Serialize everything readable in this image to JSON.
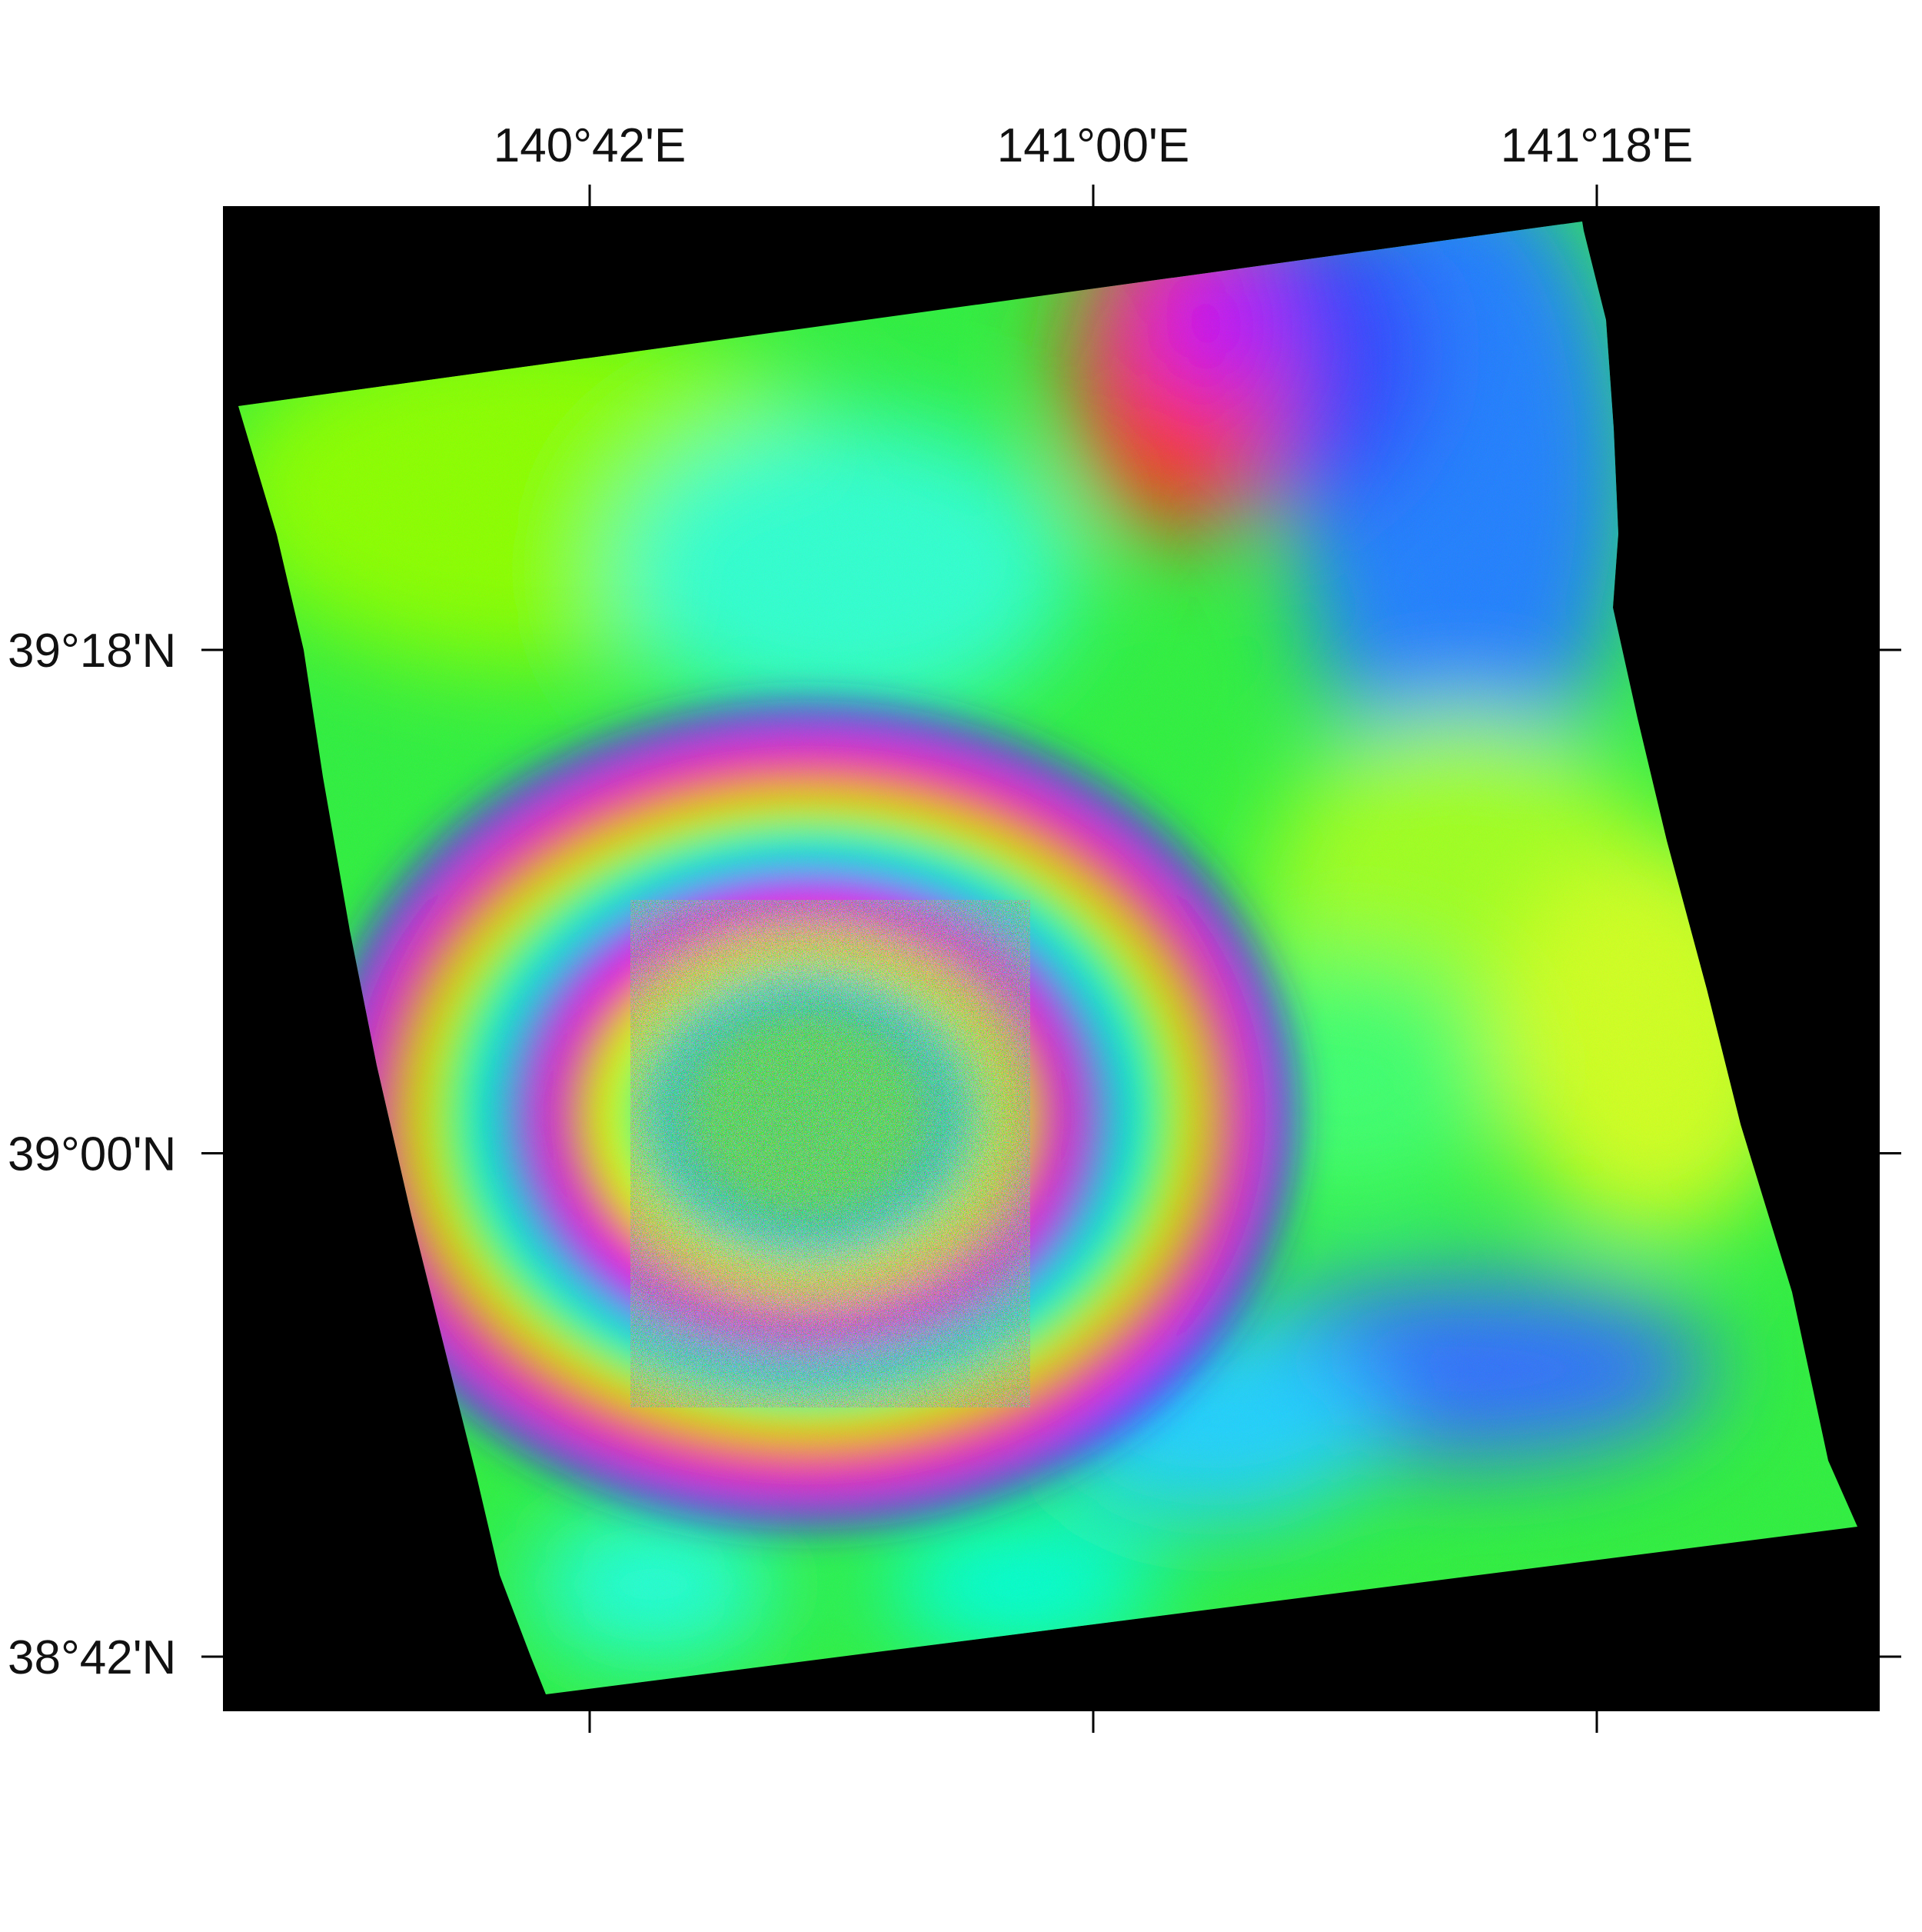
{
  "map": {
    "lon_ticks": [
      {
        "label": "140°42'E",
        "lon": 140.7
      },
      {
        "label": "141°00'E",
        "lon": 141.0
      },
      {
        "label": "141°18'E",
        "lon": 141.3
      }
    ],
    "lat_ticks": [
      {
        "label": "39°18'N",
        "lat": 39.3
      },
      {
        "label": "39°00'N",
        "lat": 39.0
      },
      {
        "label": "38°42'N",
        "lat": 38.7
      }
    ],
    "background_color": "#000000",
    "colormap": [
      "#ff0000",
      "#ffff00",
      "#00ff00",
      "#00ffff",
      "#0000ff",
      "#ff00ff"
    ]
  }
}
